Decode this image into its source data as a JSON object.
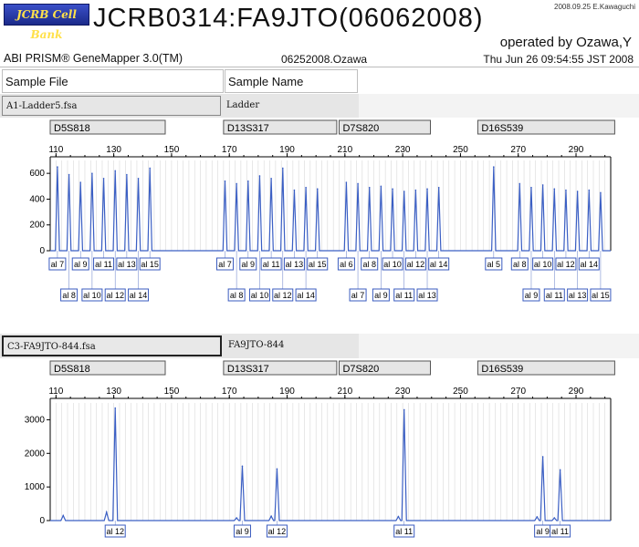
{
  "header": {
    "logo_text": "JCRB Cell Bank",
    "title": "JCRB0314:FA9JTO(06062008)",
    "stamp": "2008.09.25 E.Kawaguchi",
    "operator": "operated by Ozawa,Y",
    "app_name": "ABI PRISM® GeneMapper 3.0(TM)",
    "file_id": "06252008.Ozawa",
    "datetime": "Thu Jun 26 09:54:55 JST 2008"
  },
  "table": {
    "col_sample_file": "Sample File",
    "col_sample_name": "Sample Name"
  },
  "colors": {
    "trace": "#3b5fc4",
    "label_border": "#3a5bbf",
    "grid": "#d8d8d8"
  },
  "chart_data": [
    {
      "type": "line",
      "sample_file": "A1-Ladder5.fsa",
      "sample_name": "Ladder",
      "markers": [
        {
          "name": "D5S818",
          "start": 108
        },
        {
          "name": "D13S317",
          "start": 168
        },
        {
          "name": "D7S820",
          "start": 208
        },
        {
          "name": "D16S539",
          "start": 256
        }
      ],
      "x_ticks": [
        110,
        130,
        150,
        170,
        190,
        210,
        230,
        250,
        270,
        290
      ],
      "y_ticks": [
        0,
        200,
        400,
        600
      ],
      "xlim": [
        108,
        302
      ],
      "ylim": [
        0,
        700
      ],
      "peaks": [
        {
          "x": 110.5,
          "y": 650
        },
        {
          "x": 114.5,
          "y": 590
        },
        {
          "x": 118.5,
          "y": 530
        },
        {
          "x": 122.5,
          "y": 600
        },
        {
          "x": 126.5,
          "y": 560
        },
        {
          "x": 130.5,
          "y": 620
        },
        {
          "x": 134.5,
          "y": 590
        },
        {
          "x": 138.5,
          "y": 560
        },
        {
          "x": 142.5,
          "y": 640
        },
        {
          "x": 168.5,
          "y": 540
        },
        {
          "x": 172.5,
          "y": 520
        },
        {
          "x": 176.5,
          "y": 540
        },
        {
          "x": 180.5,
          "y": 580
        },
        {
          "x": 184.5,
          "y": 560
        },
        {
          "x": 188.5,
          "y": 640
        },
        {
          "x": 192.5,
          "y": 470
        },
        {
          "x": 196.5,
          "y": 490
        },
        {
          "x": 200.5,
          "y": 480
        },
        {
          "x": 210.5,
          "y": 530
        },
        {
          "x": 214.5,
          "y": 520
        },
        {
          "x": 218.5,
          "y": 490
        },
        {
          "x": 222.5,
          "y": 500
        },
        {
          "x": 226.5,
          "y": 480
        },
        {
          "x": 230.5,
          "y": 460
        },
        {
          "x": 234.5,
          "y": 470
        },
        {
          "x": 238.5,
          "y": 480
        },
        {
          "x": 242.5,
          "y": 490
        },
        {
          "x": 261.5,
          "y": 650
        },
        {
          "x": 270.5,
          "y": 520
        },
        {
          "x": 274.5,
          "y": 490
        },
        {
          "x": 278.5,
          "y": 510
        },
        {
          "x": 282.5,
          "y": 480
        },
        {
          "x": 286.5,
          "y": 470
        },
        {
          "x": 290.5,
          "y": 460
        },
        {
          "x": 294.5,
          "y": 470
        },
        {
          "x": 298.5,
          "y": 450
        }
      ],
      "allele_labels_top": [
        {
          "x": 110.5,
          "label": "al 7"
        },
        {
          "x": 118.5,
          "label": "al 9"
        },
        {
          "x": 126.5,
          "label": "al 11"
        },
        {
          "x": 134.5,
          "label": "al 13"
        },
        {
          "x": 142.5,
          "label": "al 15"
        },
        {
          "x": 168.5,
          "label": "al 7"
        },
        {
          "x": 176.5,
          "label": "al 9"
        },
        {
          "x": 184.5,
          "label": "al 11"
        },
        {
          "x": 192.5,
          "label": "al 13"
        },
        {
          "x": 200.5,
          "label": "al 15"
        },
        {
          "x": 210.5,
          "label": "al 6"
        },
        {
          "x": 218.5,
          "label": "al 8"
        },
        {
          "x": 226.5,
          "label": "al 10"
        },
        {
          "x": 234.5,
          "label": "al 12"
        },
        {
          "x": 242.5,
          "label": "al 14"
        },
        {
          "x": 261.5,
          "label": "al 5"
        },
        {
          "x": 270.5,
          "label": "al 8"
        },
        {
          "x": 278.5,
          "label": "al 10"
        },
        {
          "x": 286.5,
          "label": "al 12"
        },
        {
          "x": 294.5,
          "label": "al 14"
        }
      ],
      "allele_labels_bottom": [
        {
          "x": 114.5,
          "label": "al 8"
        },
        {
          "x": 122.5,
          "label": "al 10"
        },
        {
          "x": 130.5,
          "label": "al 12"
        },
        {
          "x": 138.5,
          "label": "al 14"
        },
        {
          "x": 172.5,
          "label": "al 8"
        },
        {
          "x": 180.5,
          "label": "al 10"
        },
        {
          "x": 188.5,
          "label": "al 12"
        },
        {
          "x": 196.5,
          "label": "al 14"
        },
        {
          "x": 214.5,
          "label": "al 7"
        },
        {
          "x": 222.5,
          "label": "al 9"
        },
        {
          "x": 230.5,
          "label": "al 11"
        },
        {
          "x": 238.5,
          "label": "al 13"
        },
        {
          "x": 274.5,
          "label": "al 9"
        },
        {
          "x": 282.5,
          "label": "al 11"
        },
        {
          "x": 290.5,
          "label": "al 13"
        },
        {
          "x": 298.5,
          "label": "al 15"
        }
      ]
    },
    {
      "type": "line",
      "sample_file": "C3-FA9JTO-844.fsa",
      "sample_name": "FA9JTO-844",
      "markers": [
        {
          "name": "D5S818",
          "start": 108
        },
        {
          "name": "D13S317",
          "start": 168
        },
        {
          "name": "D7S820",
          "start": 208
        },
        {
          "name": "D16S539",
          "start": 256
        }
      ],
      "x_ticks": [
        110,
        130,
        150,
        170,
        190,
        210,
        230,
        250,
        270,
        290
      ],
      "y_ticks": [
        0,
        1000,
        2000,
        3000
      ],
      "xlim": [
        108,
        302
      ],
      "ylim": [
        0,
        3500
      ],
      "peaks": [
        {
          "x": 112.5,
          "y": 150
        },
        {
          "x": 127.5,
          "y": 250
        },
        {
          "x": 130.5,
          "y": 3350
        },
        {
          "x": 172.5,
          "y": 80
        },
        {
          "x": 174.5,
          "y": 1620
        },
        {
          "x": 184.5,
          "y": 130
        },
        {
          "x": 186.5,
          "y": 1540
        },
        {
          "x": 228.5,
          "y": 120
        },
        {
          "x": 230.5,
          "y": 3300
        },
        {
          "x": 276.5,
          "y": 110
        },
        {
          "x": 278.5,
          "y": 1900
        },
        {
          "x": 282.5,
          "y": 80
        },
        {
          "x": 284.5,
          "y": 1510
        }
      ],
      "allele_labels_top": [
        {
          "x": 130.5,
          "label": "al 12"
        },
        {
          "x": 174.5,
          "label": "al 9"
        },
        {
          "x": 186.5,
          "label": "al 12"
        },
        {
          "x": 230.5,
          "label": "al 11"
        },
        {
          "x": 278.5,
          "label": "al 9"
        },
        {
          "x": 284.5,
          "label": "al 11"
        }
      ],
      "allele_labels_bottom": []
    }
  ]
}
